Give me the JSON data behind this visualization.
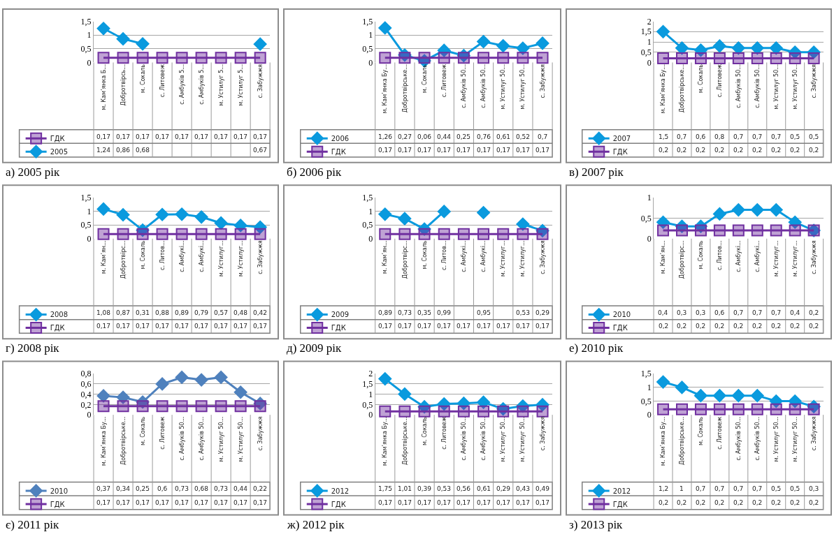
{
  "chart_data": [
    {
      "type": "line",
      "title": "а) 2005 рік",
      "categories": [
        "м. Кам’янка Б...",
        "Добротвірсь...",
        "м. Сокаль",
        "с. Литовеж",
        "с. Амбуків 5...",
        "с. Амбуків 5...",
        "м. Устилуг 5...",
        "м. Устилуг 5...",
        "с. Забужжя"
      ],
      "ylim": [
        0,
        1.5
      ],
      "yticks": [
        0,
        {
          "value": 0.5,
          "label": "0,5"
        },
        1,
        {
          "value": 1.5,
          "label": "1,5"
        }
      ],
      "grid": "y",
      "legend": "bottom",
      "series": [
        {
          "name": "ГДК",
          "color": "#7030a0",
          "marker": "square",
          "values": [
            0.17,
            0.17,
            0.17,
            0.17,
            0.17,
            0.17,
            0.17,
            0.17,
            0.17
          ],
          "value_labels": [
            "0,17",
            "0,17",
            "0,17",
            "0,17",
            "0,17",
            "0,17",
            "0,17",
            "0,17",
            "0,17"
          ]
        },
        {
          "name": "2005",
          "color": "#0a9ade",
          "marker": "diamond",
          "values": [
            1.24,
            0.86,
            0.68,
            null,
            null,
            null,
            null,
            null,
            0.67
          ],
          "value_labels": [
            "1,24",
            "0,86",
            "0,68",
            null,
            null,
            null,
            null,
            null,
            "0,67"
          ]
        }
      ]
    },
    {
      "type": "line",
      "title": "б) 2006 рік",
      "categories": [
        "м. Кам’янка Бу...",
        "Добротвірське...",
        "м. Сокаль",
        "с. Литовеж",
        "с. Амбуків 50...",
        "с. Амбуків 50...",
        "м. Устилуг 50...",
        "м. Устилуг 50...",
        "с. Забужжя"
      ],
      "ylim": [
        0,
        1.5
      ],
      "yticks": [
        0,
        {
          "value": 0.5,
          "label": "0,5"
        },
        1,
        {
          "value": 1.5,
          "label": "1,5"
        }
      ],
      "grid": "y",
      "legend": "bottom",
      "series": [
        {
          "name": "2006",
          "color": "#0a9ade",
          "marker": "diamond",
          "values": [
            1.26,
            0.27,
            0.06,
            0.44,
            0.25,
            0.76,
            0.61,
            0.52,
            0.7
          ],
          "value_labels": [
            "1,26",
            "0,27",
            "0,06",
            "0,44",
            "0,25",
            "0,76",
            "0,61",
            "0,52",
            "0,7"
          ]
        },
        {
          "name": "ГДК",
          "color": "#7030a0",
          "marker": "square",
          "values": [
            0.17,
            0.17,
            0.17,
            0.17,
            0.17,
            0.17,
            0.17,
            0.17,
            0.17
          ],
          "value_labels": [
            "0,17",
            "0,17",
            "0,17",
            "0,17",
            "0,17",
            "0,17",
            "0,17",
            "0,17",
            "0,17"
          ]
        }
      ]
    },
    {
      "type": "line",
      "title": "в) 2007 рік",
      "categories": [
        "м. Кам’янка Бу...",
        "Добротвірське...",
        "м. Сокаль",
        "с. Литовеж",
        "с. Амбуків 50...",
        "с. Амбуків 50...",
        "м. Устилуг 50...",
        "м. Устилуг 50...",
        "с. Забужжя"
      ],
      "ylim": [
        0,
        2
      ],
      "yticks": [
        0,
        {
          "value": 0.5,
          "label": "0,5"
        },
        1,
        {
          "value": 1.5,
          "label": "1,5"
        },
        2
      ],
      "grid": "y",
      "legend": "bottom",
      "series": [
        {
          "name": "2007",
          "color": "#0a9ade",
          "marker": "diamond",
          "values": [
            1.5,
            0.7,
            0.6,
            0.8,
            0.7,
            0.7,
            0.7,
            0.5,
            0.5
          ],
          "value_labels": [
            "1,5",
            "0,7",
            "0,6",
            "0,8",
            "0,7",
            "0,7",
            "0,7",
            "0,5",
            "0,5"
          ]
        },
        {
          "name": "ГДК",
          "color": "#7030a0",
          "marker": "square",
          "values": [
            0.2,
            0.2,
            0.2,
            0.2,
            0.2,
            0.2,
            0.2,
            0.2,
            0.2
          ],
          "value_labels": [
            "0,2",
            "0,2",
            "0,2",
            "0,2",
            "0,2",
            "0,2",
            "0,2",
            "0,2",
            "0,2"
          ]
        }
      ]
    },
    {
      "type": "line",
      "title": "г) 2008 рік",
      "categories": [
        "м. Кам’ян...",
        "Добротвірс...",
        "м. Сокаль",
        "с. Литов...",
        "с. Амбукі...",
        "с. Амбукі...",
        "м. Устилуг...",
        "м. Устилуг...",
        "с. Забужжя"
      ],
      "ylim": [
        0,
        1.5
      ],
      "yticks": [
        0,
        {
          "value": 0.5,
          "label": "0,5"
        },
        1,
        {
          "value": 1.5,
          "label": "1,5"
        }
      ],
      "grid": "y",
      "legend": "bottom",
      "series": [
        {
          "name": "2008",
          "color": "#0a9ade",
          "marker": "diamond",
          "values": [
            1.08,
            0.87,
            0.31,
            0.88,
            0.89,
            0.79,
            0.57,
            0.48,
            0.42
          ],
          "value_labels": [
            "1,08",
            "0,87",
            "0,31",
            "0,88",
            "0,89",
            "0,79",
            "0,57",
            "0,48",
            "0,42"
          ]
        },
        {
          "name": "ГДК",
          "color": "#7030a0",
          "marker": "square",
          "values": [
            0.17,
            0.17,
            0.17,
            0.17,
            0.17,
            0.17,
            0.17,
            0.17,
            0.17
          ],
          "value_labels": [
            "0,17",
            "0,17",
            "0,17",
            "0,17",
            "0,17",
            "0,17",
            "0,17",
            "0,17",
            "0,17"
          ]
        }
      ]
    },
    {
      "type": "line",
      "title": "д) 2009 рік",
      "categories": [
        "м. Кам’ян...",
        "Добротвірс...",
        "м. Сокаль",
        "с. Литов...",
        "с. Амбукі...",
        "с. Амбукі...",
        "м. Устилуг...",
        "м. Устилуг...",
        "с. Забужжя"
      ],
      "ylim": [
        0,
        1.5
      ],
      "yticks": [
        0,
        {
          "value": 0.5,
          "label": "0,5"
        },
        1,
        {
          "value": 1.5,
          "label": "1,5"
        }
      ],
      "grid": "y",
      "legend": "bottom",
      "series": [
        {
          "name": "2009",
          "color": "#0a9ade",
          "marker": "diamond",
          "values": [
            0.89,
            0.73,
            0.35,
            0.99,
            null,
            0.95,
            null,
            0.53,
            0.29
          ],
          "value_labels": [
            "0,89",
            "0,73",
            "0,35",
            "0,99",
            null,
            "0,95",
            null,
            "0,53",
            "0,29"
          ]
        },
        {
          "name": "ГДК",
          "color": "#7030a0",
          "marker": "square",
          "values": [
            0.17,
            0.17,
            0.17,
            0.17,
            0.17,
            0.17,
            0.17,
            0.17,
            0.17
          ],
          "value_labels": [
            "0,17",
            "0,17",
            "0,17",
            "0,17",
            "0,17",
            "0,17",
            "0,17",
            "0,17",
            "0,17"
          ]
        }
      ]
    },
    {
      "type": "line",
      "title": "е) 2010 рік",
      "categories": [
        "м. Кам’ян...",
        "Добротвірс...",
        "м. Сокаль",
        "с. Литов...",
        "с. Амбукі...",
        "с. Амбукі...",
        "м. Устилуг...",
        "м. Устилуг...",
        "с. Забужжя"
      ],
      "ylim": [
        0,
        1
      ],
      "yticks": [
        0,
        {
          "value": 0.5,
          "label": "0,5"
        },
        1
      ],
      "grid": "y",
      "legend": "bottom",
      "series": [
        {
          "name": "2010",
          "color": "#0a9ade",
          "marker": "diamond",
          "values": [
            0.4,
            0.3,
            0.3,
            0.6,
            0.7,
            0.7,
            0.7,
            0.4,
            0.2
          ],
          "value_labels": [
            "0,4",
            "0,3",
            "0,3",
            "0,6",
            "0,7",
            "0,7",
            "0,7",
            "0,4",
            "0,2"
          ]
        },
        {
          "name": "ГДК",
          "color": "#7030a0",
          "marker": "square",
          "values": [
            0.2,
            0.2,
            0.2,
            0.2,
            0.2,
            0.2,
            0.2,
            0.2,
            0.2
          ],
          "value_labels": [
            "0,2",
            "0,2",
            "0,2",
            "0,2",
            "0,2",
            "0,2",
            "0,2",
            "0,2",
            "0,2"
          ]
        }
      ]
    },
    {
      "type": "line",
      "title": "є) 2011 рік",
      "categories": [
        "м. Кам’янка Бу...",
        "Добротвірське...",
        "м. Сокаль",
        "с. Литовеж",
        "с. Амбуків 50...",
        "с. Амбуків 50...",
        "м. Устилуг 50...",
        "м. Устилуг 50...",
        "с. Забужжя"
      ],
      "ylim": [
        0,
        0.8
      ],
      "yticks": [
        0,
        {
          "value": 0.2,
          "label": "0,2"
        },
        {
          "value": 0.4,
          "label": "0,4"
        },
        {
          "value": 0.6,
          "label": "0,6"
        },
        {
          "value": 0.8,
          "label": "0,8"
        }
      ],
      "grid": "y",
      "legend": "bottom",
      "series": [
        {
          "name": "2010",
          "color": "#4f81bd",
          "marker": "diamond",
          "values": [
            0.37,
            0.34,
            0.25,
            0.6,
            0.73,
            0.68,
            0.73,
            0.44,
            0.22
          ],
          "value_labels": [
            "0,37",
            "0,34",
            "0,25",
            "0,6",
            "0,73",
            "0,68",
            "0,73",
            "0,44",
            "0,22"
          ]
        },
        {
          "name": "ГДК",
          "color": "#7030a0",
          "marker": "square",
          "values": [
            0.17,
            0.17,
            0.17,
            0.17,
            0.17,
            0.17,
            0.17,
            0.17,
            0.17
          ],
          "value_labels": [
            "0,17",
            "0,17",
            "0,17",
            "0,17",
            "0,17",
            "0,17",
            "0,17",
            "0,17",
            "0,17"
          ]
        }
      ]
    },
    {
      "type": "line",
      "title": "ж) 2012 рік",
      "categories": [
        "м. Кам’янка Бу...",
        "Добротвірське...",
        "м. Сокаль",
        "с. Литовеж",
        "с. Амбуків 50...",
        "с. Амбуків 50...",
        "м. Устилуг 50...",
        "м. Устилуг 50...",
        "с. Забужжя"
      ],
      "ylim": [
        0,
        2
      ],
      "yticks": [
        0,
        {
          "value": 0.5,
          "label": "0,5"
        },
        1,
        {
          "value": 1.5,
          "label": "1,5"
        },
        2
      ],
      "grid": "y",
      "legend": "bottom",
      "series": [
        {
          "name": "2012",
          "color": "#0a9ade",
          "marker": "diamond",
          "values": [
            1.75,
            1.01,
            0.39,
            0.53,
            0.56,
            0.61,
            0.29,
            0.43,
            0.49
          ],
          "value_labels": [
            "1,75",
            "1,01",
            "0,39",
            "0,53",
            "0,56",
            "0,61",
            "0,29",
            "0,43",
            "0,49"
          ]
        },
        {
          "name": "ГДК",
          "color": "#7030a0",
          "marker": "square",
          "values": [
            0.17,
            0.17,
            0.17,
            0.17,
            0.17,
            0.17,
            0.17,
            0.17,
            0.17
          ],
          "value_labels": [
            "0,17",
            "0,17",
            "0,17",
            "0,17",
            "0,17",
            "0,17",
            "0,17",
            "0,17",
            "0,17"
          ]
        }
      ]
    },
    {
      "type": "line",
      "title": "з) 2013 рік",
      "categories": [
        "м. Кам’янка Бу...",
        "Добротвірське...",
        "м. Сокаль",
        "с. Литовеж",
        "с. Амбуків 50...",
        "с. Амбуків 50...",
        "м. Устилуг 50...",
        "м. Устилуг 50...",
        "с. Забужжя"
      ],
      "ylim": [
        0,
        1.5
      ],
      "yticks": [
        0,
        {
          "value": 0.5,
          "label": "0,5"
        },
        1,
        {
          "value": 1.5,
          "label": "1,5"
        }
      ],
      "grid": "y",
      "legend": "bottom",
      "series": [
        {
          "name": "2012",
          "color": "#0a9ade",
          "marker": "diamond",
          "values": [
            1.2,
            1,
            0.7,
            0.7,
            0.7,
            0.7,
            0.5,
            0.5,
            0.3
          ],
          "value_labels": [
            "1,2",
            "1",
            "0,7",
            "0,7",
            "0,7",
            "0,7",
            "0,5",
            "0,5",
            "0,3"
          ]
        },
        {
          "name": "ГДК",
          "color": "#7030a0",
          "marker": "square",
          "values": [
            0.2,
            0.2,
            0.2,
            0.2,
            0.2,
            0.2,
            0.2,
            0.2,
            0.2
          ],
          "value_labels": [
            "0,2",
            "0,2",
            "0,2",
            "0,2",
            "0,2",
            "0,2",
            "0,2",
            "0,2",
            "0,2"
          ]
        }
      ]
    }
  ]
}
